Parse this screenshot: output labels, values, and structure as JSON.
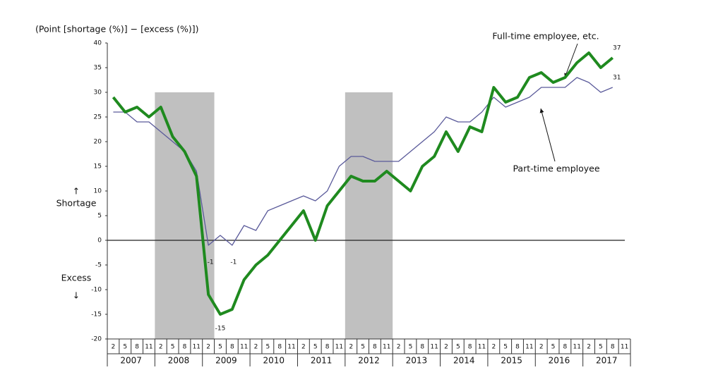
{
  "chart_data": {
    "type": "line",
    "y_axis_label": "(Point [shortage (%)] − [excess (%)])",
    "annotations": {
      "shortage": "↑\nShortage",
      "excess": "Excess\n↓",
      "shortage_arrow": "↑",
      "shortage_text": "Shortage",
      "excess_text": "Excess",
      "excess_arrow": "↓"
    },
    "categories": [
      "2",
      "5",
      "8",
      "11",
      "2",
      "5",
      "8",
      "11",
      "2",
      "5",
      "8",
      "11",
      "2",
      "5",
      "8",
      "11",
      "2",
      "5",
      "8",
      "11",
      "2",
      "5",
      "8",
      "11",
      "2",
      "5",
      "8",
      "11",
      "2",
      "5",
      "8",
      "11",
      "2",
      "5",
      "8",
      "11",
      "2",
      "5",
      "8",
      "11",
      "2",
      "5",
      "8",
      "11"
    ],
    "years": [
      "2007",
      "2008",
      "2009",
      "2010",
      "2011",
      "2012",
      "2013",
      "2014",
      "2015",
      "2016",
      "2017"
    ],
    "series": [
      {
        "name": "Full-time employee, etc.",
        "color": "#1f8a1f",
        "values": [
          29,
          26,
          27,
          25,
          27,
          21,
          18,
          13,
          -11,
          -15,
          -14,
          -8,
          -5,
          -3,
          0,
          3,
          6,
          0,
          7,
          10,
          13,
          12,
          12,
          14,
          12,
          10,
          15,
          17,
          22,
          18,
          23,
          22,
          31,
          28,
          29,
          33,
          34,
          32,
          33,
          36,
          38,
          35,
          37,
          null
        ]
      },
      {
        "name": "Part-time employee",
        "color": "#5a5a9a",
        "values": [
          26,
          26,
          24,
          24,
          22,
          20,
          18,
          14,
          -1,
          1,
          -1,
          3,
          2,
          6,
          7,
          8,
          9,
          8,
          10,
          15,
          17,
          17,
          16,
          16,
          16,
          18,
          20,
          22,
          25,
          24,
          24,
          26,
          29,
          27,
          28,
          29,
          31,
          31,
          31,
          33,
          32,
          30,
          31,
          null
        ]
      }
    ],
    "ylim": [
      -20,
      40
    ],
    "yticks": [
      -20,
      -15,
      -10,
      -5,
      0,
      5,
      10,
      15,
      20,
      25,
      30,
      35,
      40
    ],
    "grid": false
  }
}
